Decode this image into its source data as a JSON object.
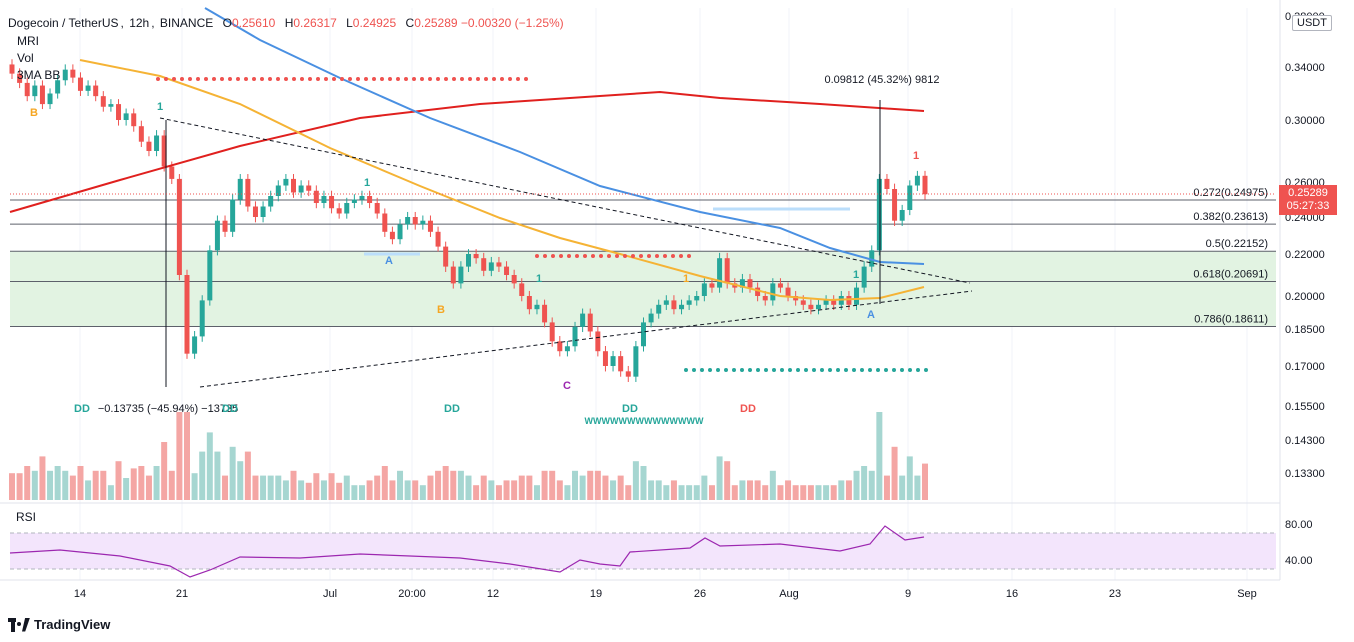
{
  "header": {
    "pair": "Dogecoin / TetherUS",
    "interval": "12h",
    "exchange": "BINANCE",
    "open_label": "O",
    "open": "0.25610",
    "high_label": "H",
    "high": "0.26317",
    "low_label": "L",
    "low": "0.24925",
    "close_label": "C",
    "close": "0.25289",
    "change": "−0.00320 (−1.25%)"
  },
  "indicators": [
    "MRI",
    "Vol",
    "3MA BB"
  ],
  "rsi_label": "RSI",
  "currency": "USDT",
  "current_price": {
    "value": "0.25289",
    "countdown": "05:27:33"
  },
  "brand": "TradingView",
  "colors": {
    "up": "#26a69a",
    "down": "#ef5350",
    "ma_red": "#e0201e",
    "ma_blue": "#4a90e2",
    "ma_orange": "#f5b335",
    "rsi": "#9c27b0",
    "fib_zone": "#e2f3e2"
  },
  "chart_data": {
    "type": "candlestick",
    "y_axis_ticks": [
      "0.38000",
      "0.34000",
      "0.30000",
      "0.26000",
      "0.24000",
      "0.22000",
      "0.20000",
      "0.18500",
      "0.17000",
      "0.15500",
      "0.14300",
      "0.13300"
    ],
    "x_axis_ticks": [
      "14",
      "21",
      "Jul",
      "20:00",
      "12",
      "19",
      "26",
      "Aug",
      "9",
      "16",
      "23",
      "Sep"
    ],
    "rsi_ticks": [
      "80.00",
      "40.00"
    ],
    "fib_levels": [
      {
        "ratio": "0.272",
        "price": 0.24975,
        "label": "0.272(0.24975)"
      },
      {
        "ratio": "0.382",
        "price": 0.23613,
        "label": "0.382(0.23613)"
      },
      {
        "ratio": "0.5",
        "price": 0.22152,
        "label": "0.5(0.22152)"
      },
      {
        "ratio": "0.618",
        "price": 0.20691,
        "label": "0.618(0.20691)"
      },
      {
        "ratio": "0.786",
        "price": 0.18611,
        "label": "0.786(0.18611)"
      }
    ],
    "annotations": [
      {
        "text": "0.09812 (45.32%) 9812"
      },
      {
        "text": "−0.13735 (−45.94%) −13735"
      }
    ],
    "markers": {
      "dd": [
        "DD",
        "DD",
        "DD",
        "DD",
        "DD"
      ],
      "letters": [
        "B",
        "A",
        "B",
        "C",
        "A"
      ],
      "ones": [
        "1",
        "1",
        "1",
        "1",
        "1",
        "1"
      ],
      "wave": "WWWWWWWWWWWWWW"
    },
    "closes": [
      0.335,
      0.328,
      0.318,
      0.326,
      0.312,
      0.32,
      0.33,
      0.338,
      0.332,
      0.322,
      0.326,
      0.318,
      0.31,
      0.312,
      0.3,
      0.305,
      0.296,
      0.286,
      0.28,
      0.29,
      0.27,
      0.262,
      0.21,
      0.175,
      0.182,
      0.198,
      0.222,
      0.238,
      0.232,
      0.25,
      0.262,
      0.246,
      0.24,
      0.246,
      0.252,
      0.258,
      0.262,
      0.254,
      0.258,
      0.255,
      0.248,
      0.252,
      0.245,
      0.242,
      0.248,
      0.25,
      0.252,
      0.248,
      0.242,
      0.232,
      0.228,
      0.236,
      0.24,
      0.236,
      0.238,
      0.232,
      0.224,
      0.214,
      0.206,
      0.214,
      0.22,
      0.218,
      0.212,
      0.216,
      0.214,
      0.21,
      0.206,
      0.2,
      0.194,
      0.196,
      0.188,
      0.18,
      0.176,
      0.178,
      0.186,
      0.192,
      0.184,
      0.176,
      0.17,
      0.174,
      0.168,
      0.166,
      0.178,
      0.188,
      0.192,
      0.196,
      0.198,
      0.194,
      0.196,
      0.198,
      0.2,
      0.206,
      0.204,
      0.218,
      0.206,
      0.204,
      0.208,
      0.204,
      0.2,
      0.198,
      0.206,
      0.204,
      0.2,
      0.198,
      0.196,
      0.194,
      0.196,
      0.198,
      0.196,
      0.2,
      0.196,
      0.204,
      0.214,
      0.222,
      0.262,
      0.256,
      0.238,
      0.244,
      0.258,
      0.264,
      0.253
    ]
  }
}
